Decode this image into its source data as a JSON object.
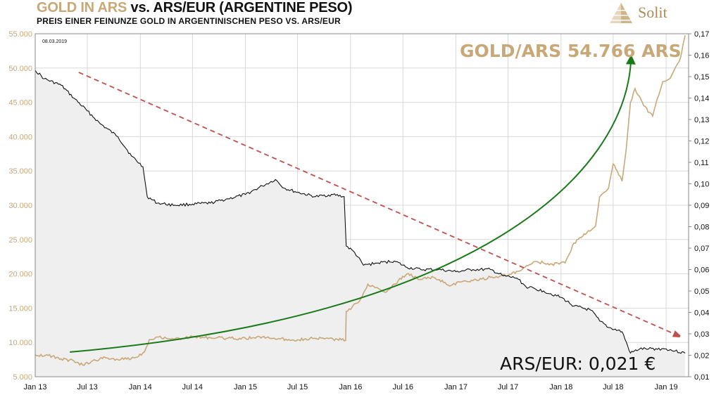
{
  "header": {
    "title_gold": "GOLD IN ARS",
    "title_rest": " vs. ARS/EUR (ARGENTINE PESO)",
    "subtitle": "PREIS  EINER  FEINUNZE  GOLD  IN ARGENTINISCHEN PESO VS. ARS/EUR"
  },
  "logo": {
    "text": "Solit"
  },
  "colors": {
    "gold": "#c9a877",
    "ars_eur": "#111111",
    "trend_down": "#c0504d",
    "trend_up": "#1a7a1a",
    "area_fill": "#efefef"
  },
  "chart_data": {
    "type": "line",
    "title": "GOLD IN ARS vs. ARS/EUR (ARGENTINE PESO)",
    "subtitle": "PREIS  EINER  FEINUNZE  GOLD  IN ARGENTINISCHEN PESO VS. ARS/EUR",
    "date_stamp": "08.03.2019",
    "x_ticks": [
      "Jan 13",
      "Jul 13",
      "Jan 14",
      "Jul 14",
      "Jan 15",
      "Jul 15",
      "Jan 16",
      "Jul 16",
      "Jan 17",
      "Jul 17",
      "Jan 18",
      "Jul 18",
      "Jan 19"
    ],
    "y_left": {
      "min": 5000,
      "max": 55000,
      "ticks": [
        "5.000",
        "10.000",
        "15.000",
        "20.000",
        "25.000",
        "30.000",
        "35.000",
        "40.000",
        "45.000",
        "50.000",
        "55.000"
      ]
    },
    "y_right": {
      "min": 0.01,
      "max": 0.17,
      "ticks": [
        "0,01",
        "0,02",
        "0,03",
        "0,04",
        "0,05",
        "0,06",
        "0,07",
        "0,08",
        "0,09",
        "0,10",
        "0,11",
        "0,12",
        "0,13",
        "0,14",
        "0,15",
        "0,16",
        "0,17"
      ]
    },
    "grid": true,
    "series": [
      {
        "name": "Gold in ARS",
        "axis": "left",
        "points": [
          [
            "2013-01-01",
            8200
          ],
          [
            "2013-02-15",
            8100
          ],
          [
            "2013-04-01",
            7600
          ],
          [
            "2013-05-15",
            7300
          ],
          [
            "2013-06-15",
            6700
          ],
          [
            "2013-07-15",
            7200
          ],
          [
            "2013-09-01",
            7800
          ],
          [
            "2013-10-15",
            7500
          ],
          [
            "2013-12-15",
            7800
          ],
          [
            "2014-01-15",
            8600
          ],
          [
            "2014-02-01",
            10400
          ],
          [
            "2014-03-01",
            10800
          ],
          [
            "2014-05-01",
            10500
          ],
          [
            "2014-07-01",
            10800
          ],
          [
            "2014-09-01",
            10700
          ],
          [
            "2014-11-01",
            10600
          ],
          [
            "2015-01-01",
            10600
          ],
          [
            "2015-03-01",
            10800
          ],
          [
            "2015-05-01",
            10500
          ],
          [
            "2015-07-01",
            10400
          ],
          [
            "2015-09-01",
            10600
          ],
          [
            "2015-11-01",
            10500
          ],
          [
            "2015-12-15",
            10300
          ],
          [
            "2015-12-17",
            14500
          ],
          [
            "2016-02-01",
            16000
          ],
          [
            "2016-03-01",
            18500
          ],
          [
            "2016-04-01",
            18000
          ],
          [
            "2016-05-01",
            17300
          ],
          [
            "2016-06-01",
            18500
          ],
          [
            "2016-07-15",
            20000
          ],
          [
            "2016-09-01",
            19200
          ],
          [
            "2016-10-15",
            19500
          ],
          [
            "2016-12-15",
            18300
          ],
          [
            "2017-01-15",
            18800
          ],
          [
            "2017-03-01",
            19000
          ],
          [
            "2017-05-01",
            19500
          ],
          [
            "2017-07-01",
            19800
          ],
          [
            "2017-08-15",
            20500
          ],
          [
            "2017-10-01",
            21800
          ],
          [
            "2017-12-01",
            21400
          ],
          [
            "2018-01-15",
            21600
          ],
          [
            "2018-02-15",
            24500
          ],
          [
            "2018-04-01",
            26000
          ],
          [
            "2018-05-01",
            27000
          ],
          [
            "2018-05-15",
            31200
          ],
          [
            "2018-06-15",
            32500
          ],
          [
            "2018-07-01",
            36000
          ],
          [
            "2018-07-15",
            35000
          ],
          [
            "2018-08-01",
            33500
          ],
          [
            "2018-08-15",
            38000
          ],
          [
            "2018-08-30",
            45000
          ],
          [
            "2018-09-15",
            47000
          ],
          [
            "2018-10-15",
            44500
          ],
          [
            "2018-11-15",
            43000
          ],
          [
            "2018-12-01",
            45500
          ],
          [
            "2018-12-20",
            48000
          ],
          [
            "2019-01-15",
            48500
          ],
          [
            "2019-02-01",
            50000
          ],
          [
            "2019-02-20",
            51500
          ],
          [
            "2019-03-01",
            53500
          ],
          [
            "2019-03-08",
            54766
          ]
        ]
      },
      {
        "name": "ARS/EUR",
        "axis": "right",
        "points": [
          [
            "2013-01-01",
            0.153
          ],
          [
            "2013-02-01",
            0.149
          ],
          [
            "2013-04-01",
            0.146
          ],
          [
            "2013-05-15",
            0.14
          ],
          [
            "2013-07-01",
            0.134
          ],
          [
            "2013-08-15",
            0.128
          ],
          [
            "2013-10-15",
            0.122
          ],
          [
            "2013-12-01",
            0.113
          ],
          [
            "2014-01-10",
            0.108
          ],
          [
            "2014-01-25",
            0.094
          ],
          [
            "2014-03-01",
            0.091
          ],
          [
            "2014-05-01",
            0.09
          ],
          [
            "2014-07-01",
            0.0905
          ],
          [
            "2014-09-01",
            0.091
          ],
          [
            "2014-11-01",
            0.093
          ],
          [
            "2015-01-01",
            0.095
          ],
          [
            "2015-03-01",
            0.099
          ],
          [
            "2015-04-15",
            0.102
          ],
          [
            "2015-05-15",
            0.098
          ],
          [
            "2015-07-01",
            0.096
          ],
          [
            "2015-09-01",
            0.094
          ],
          [
            "2015-11-01",
            0.095
          ],
          [
            "2015-12-10",
            0.094
          ],
          [
            "2015-12-17",
            0.071
          ],
          [
            "2016-01-15",
            0.068
          ],
          [
            "2016-02-15",
            0.062
          ],
          [
            "2016-04-01",
            0.063
          ],
          [
            "2016-06-01",
            0.064
          ],
          [
            "2016-07-15",
            0.061
          ],
          [
            "2016-09-01",
            0.06
          ],
          [
            "2016-11-01",
            0.06
          ],
          [
            "2017-01-01",
            0.059
          ],
          [
            "2017-03-01",
            0.06
          ],
          [
            "2017-05-01",
            0.06
          ],
          [
            "2017-06-15",
            0.057
          ],
          [
            "2017-08-01",
            0.056
          ],
          [
            "2017-09-01",
            0.052
          ],
          [
            "2017-11-01",
            0.05
          ],
          [
            "2018-01-01",
            0.047
          ],
          [
            "2018-02-15",
            0.043
          ],
          [
            "2018-04-15",
            0.041
          ],
          [
            "2018-05-15",
            0.036
          ],
          [
            "2018-06-15",
            0.033
          ],
          [
            "2018-08-01",
            0.031
          ],
          [
            "2018-08-30",
            0.021
          ],
          [
            "2018-10-01",
            0.023
          ],
          [
            "2018-11-01",
            0.023
          ],
          [
            "2019-01-01",
            0.023
          ],
          [
            "2019-02-01",
            0.022
          ],
          [
            "2019-03-08",
            0.021
          ]
        ]
      }
    ],
    "trend_arrows": [
      {
        "name": "ARS/EUR downtrend",
        "style": "dashed",
        "from": [
          "2013-06-01",
          0.152
        ],
        "to": [
          "2019-03-01",
          0.028
        ]
      },
      {
        "name": "Gold/ARS uptrend",
        "style": "solid",
        "from": [
          "2013-05-01",
          0.0215
        ],
        "to": [
          "2018-09-01",
          0.158
        ]
      }
    ],
    "annotations": {
      "gold_label": "GOLD/ARS 54.766 ARS",
      "ars_label": "ARS/EUR: 0,021 €"
    }
  }
}
